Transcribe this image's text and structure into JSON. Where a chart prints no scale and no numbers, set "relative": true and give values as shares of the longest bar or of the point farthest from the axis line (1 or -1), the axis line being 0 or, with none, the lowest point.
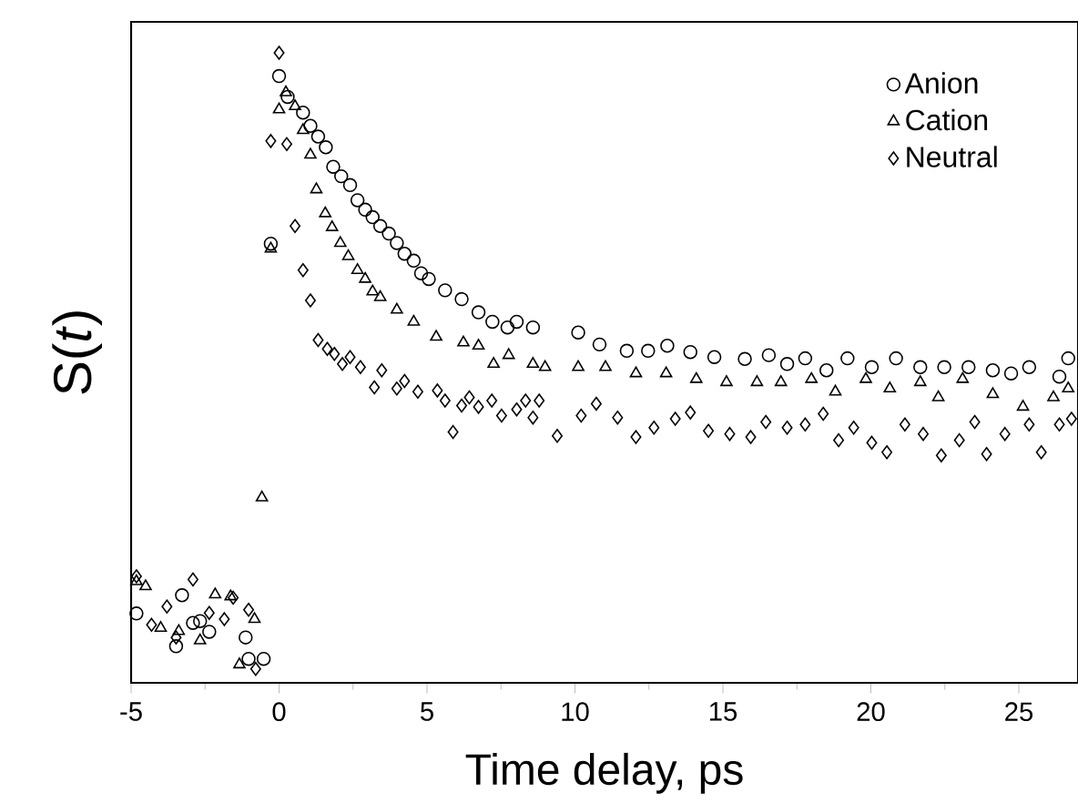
{
  "chart_data": {
    "type": "scatter",
    "xlabel": "Time delay, ps",
    "ylabel": "S(*t*)",
    "relative": true,
    "xlim": [
      -5,
      27
    ],
    "xticks": [
      -5,
      0,
      5,
      10,
      15,
      20,
      25
    ],
    "legend": "top right",
    "series": [
      {
        "name": "Anion",
        "color": "#000000",
        "marker": "circle",
        "x": [
          -4.82,
          -3.48,
          -3.28,
          -2.91,
          -2.67,
          -2.36,
          -1.13,
          -1.03,
          -0.52,
          -0.28,
          0.0,
          0.29,
          0.81,
          1.06,
          1.32,
          1.58,
          1.83,
          2.1,
          2.4,
          2.65,
          2.91,
          3.16,
          3.42,
          3.71,
          3.98,
          4.24,
          4.55,
          4.8,
          5.06,
          5.61,
          6.17,
          6.74,
          7.21,
          7.72,
          8.03,
          8.58,
          10.11,
          10.83,
          11.75,
          12.47,
          13.12,
          13.9,
          14.71,
          15.74,
          16.55,
          17.17,
          17.78,
          18.5,
          19.21,
          20.03,
          20.85,
          21.67,
          22.48,
          23.3,
          24.12,
          24.74,
          25.35,
          26.37,
          26.67
        ],
        "values": [
          0.11,
          0.058,
          0.139,
          0.095,
          0.098,
          0.081,
          0.072,
          0.038,
          0.038,
          0.697,
          0.963,
          0.93,
          0.905,
          0.884,
          0.867,
          0.85,
          0.819,
          0.804,
          0.79,
          0.766,
          0.751,
          0.739,
          0.725,
          0.713,
          0.698,
          0.681,
          0.67,
          0.65,
          0.641,
          0.623,
          0.609,
          0.588,
          0.573,
          0.564,
          0.573,
          0.564,
          0.556,
          0.537,
          0.527,
          0.527,
          0.535,
          0.525,
          0.517,
          0.514,
          0.52,
          0.506,
          0.515,
          0.496,
          0.515,
          0.501,
          0.515,
          0.501,
          0.501,
          0.501,
          0.496,
          0.491,
          0.501,
          0.486,
          0.515
        ]
      },
      {
        "name": "Cation",
        "color": "#000000",
        "marker": "triangle",
        "x": [
          -4.82,
          -4.51,
          -4.0,
          -3.39,
          -2.67,
          -2.16,
          -1.64,
          -1.34,
          -0.83,
          -0.58,
          -0.28,
          0.0,
          0.23,
          0.54,
          0.81,
          1.06,
          1.26,
          1.56,
          1.79,
          2.07,
          2.34,
          2.65,
          2.91,
          3.16,
          3.42,
          3.98,
          4.55,
          5.31,
          6.23,
          6.74,
          7.25,
          7.76,
          8.58,
          8.99,
          10.11,
          11.03,
          12.06,
          13.08,
          14.1,
          15.12,
          16.15,
          16.96,
          17.99,
          18.8,
          19.83,
          20.64,
          21.67,
          22.28,
          23.1,
          24.12,
          25.14,
          26.17,
          26.67
        ],
        "values": [
          0.161,
          0.153,
          0.087,
          0.082,
          0.067,
          0.14,
          0.137,
          0.029,
          0.101,
          0.294,
          0.689,
          0.91,
          0.937,
          0.915,
          0.877,
          0.838,
          0.783,
          0.745,
          0.723,
          0.698,
          0.677,
          0.655,
          0.641,
          0.621,
          0.612,
          0.592,
          0.573,
          0.549,
          0.54,
          0.535,
          0.506,
          0.52,
          0.506,
          0.501,
          0.501,
          0.501,
          0.491,
          0.491,
          0.482,
          0.477,
          0.477,
          0.477,
          0.482,
          0.462,
          0.482,
          0.467,
          0.477,
          0.453,
          0.482,
          0.458,
          0.438,
          0.453,
          0.467
        ]
      },
      {
        "name": "Neutral",
        "color": "#000000",
        "marker": "diamond",
        "x": [
          -4.82,
          -4.31,
          -3.79,
          -3.48,
          -2.91,
          -2.36,
          -1.85,
          -1.55,
          -1.03,
          -0.79,
          -0.28,
          0.0,
          0.26,
          0.54,
          0.81,
          1.06,
          1.32,
          1.63,
          1.87,
          2.14,
          2.4,
          2.75,
          3.22,
          3.47,
          3.98,
          4.24,
          4.69,
          5.35,
          5.61,
          5.88,
          6.17,
          6.43,
          6.74,
          7.19,
          7.52,
          8.03,
          8.33,
          8.58,
          8.79,
          9.4,
          10.21,
          10.72,
          11.44,
          12.06,
          12.67,
          13.39,
          13.9,
          14.51,
          15.23,
          15.94,
          16.45,
          17.17,
          17.78,
          18.39,
          18.91,
          19.42,
          20.03,
          20.54,
          21.15,
          21.77,
          22.38,
          22.99,
          23.51,
          23.91,
          24.53,
          25.35,
          25.76,
          26.37,
          26.78
        ],
        "values": [
          0.169,
          0.092,
          0.121,
          0.072,
          0.164,
          0.111,
          0.101,
          0.135,
          0.116,
          0.022,
          0.86,
          1.0,
          0.855,
          0.725,
          0.655,
          0.607,
          0.544,
          0.53,
          0.522,
          0.506,
          0.517,
          0.501,
          0.469,
          0.496,
          0.467,
          0.479,
          0.462,
          0.464,
          0.448,
          0.398,
          0.44,
          0.453,
          0.438,
          0.448,
          0.424,
          0.434,
          0.448,
          0.421,
          0.448,
          0.392,
          0.424,
          0.443,
          0.421,
          0.39,
          0.405,
          0.419,
          0.429,
          0.4,
          0.395,
          0.39,
          0.414,
          0.405,
          0.41,
          0.427,
          0.385,
          0.405,
          0.381,
          0.366,
          0.41,
          0.395,
          0.361,
          0.385,
          0.414,
          0.363,
          0.395,
          0.41,
          0.366,
          0.41,
          0.419
        ]
      }
    ]
  }
}
